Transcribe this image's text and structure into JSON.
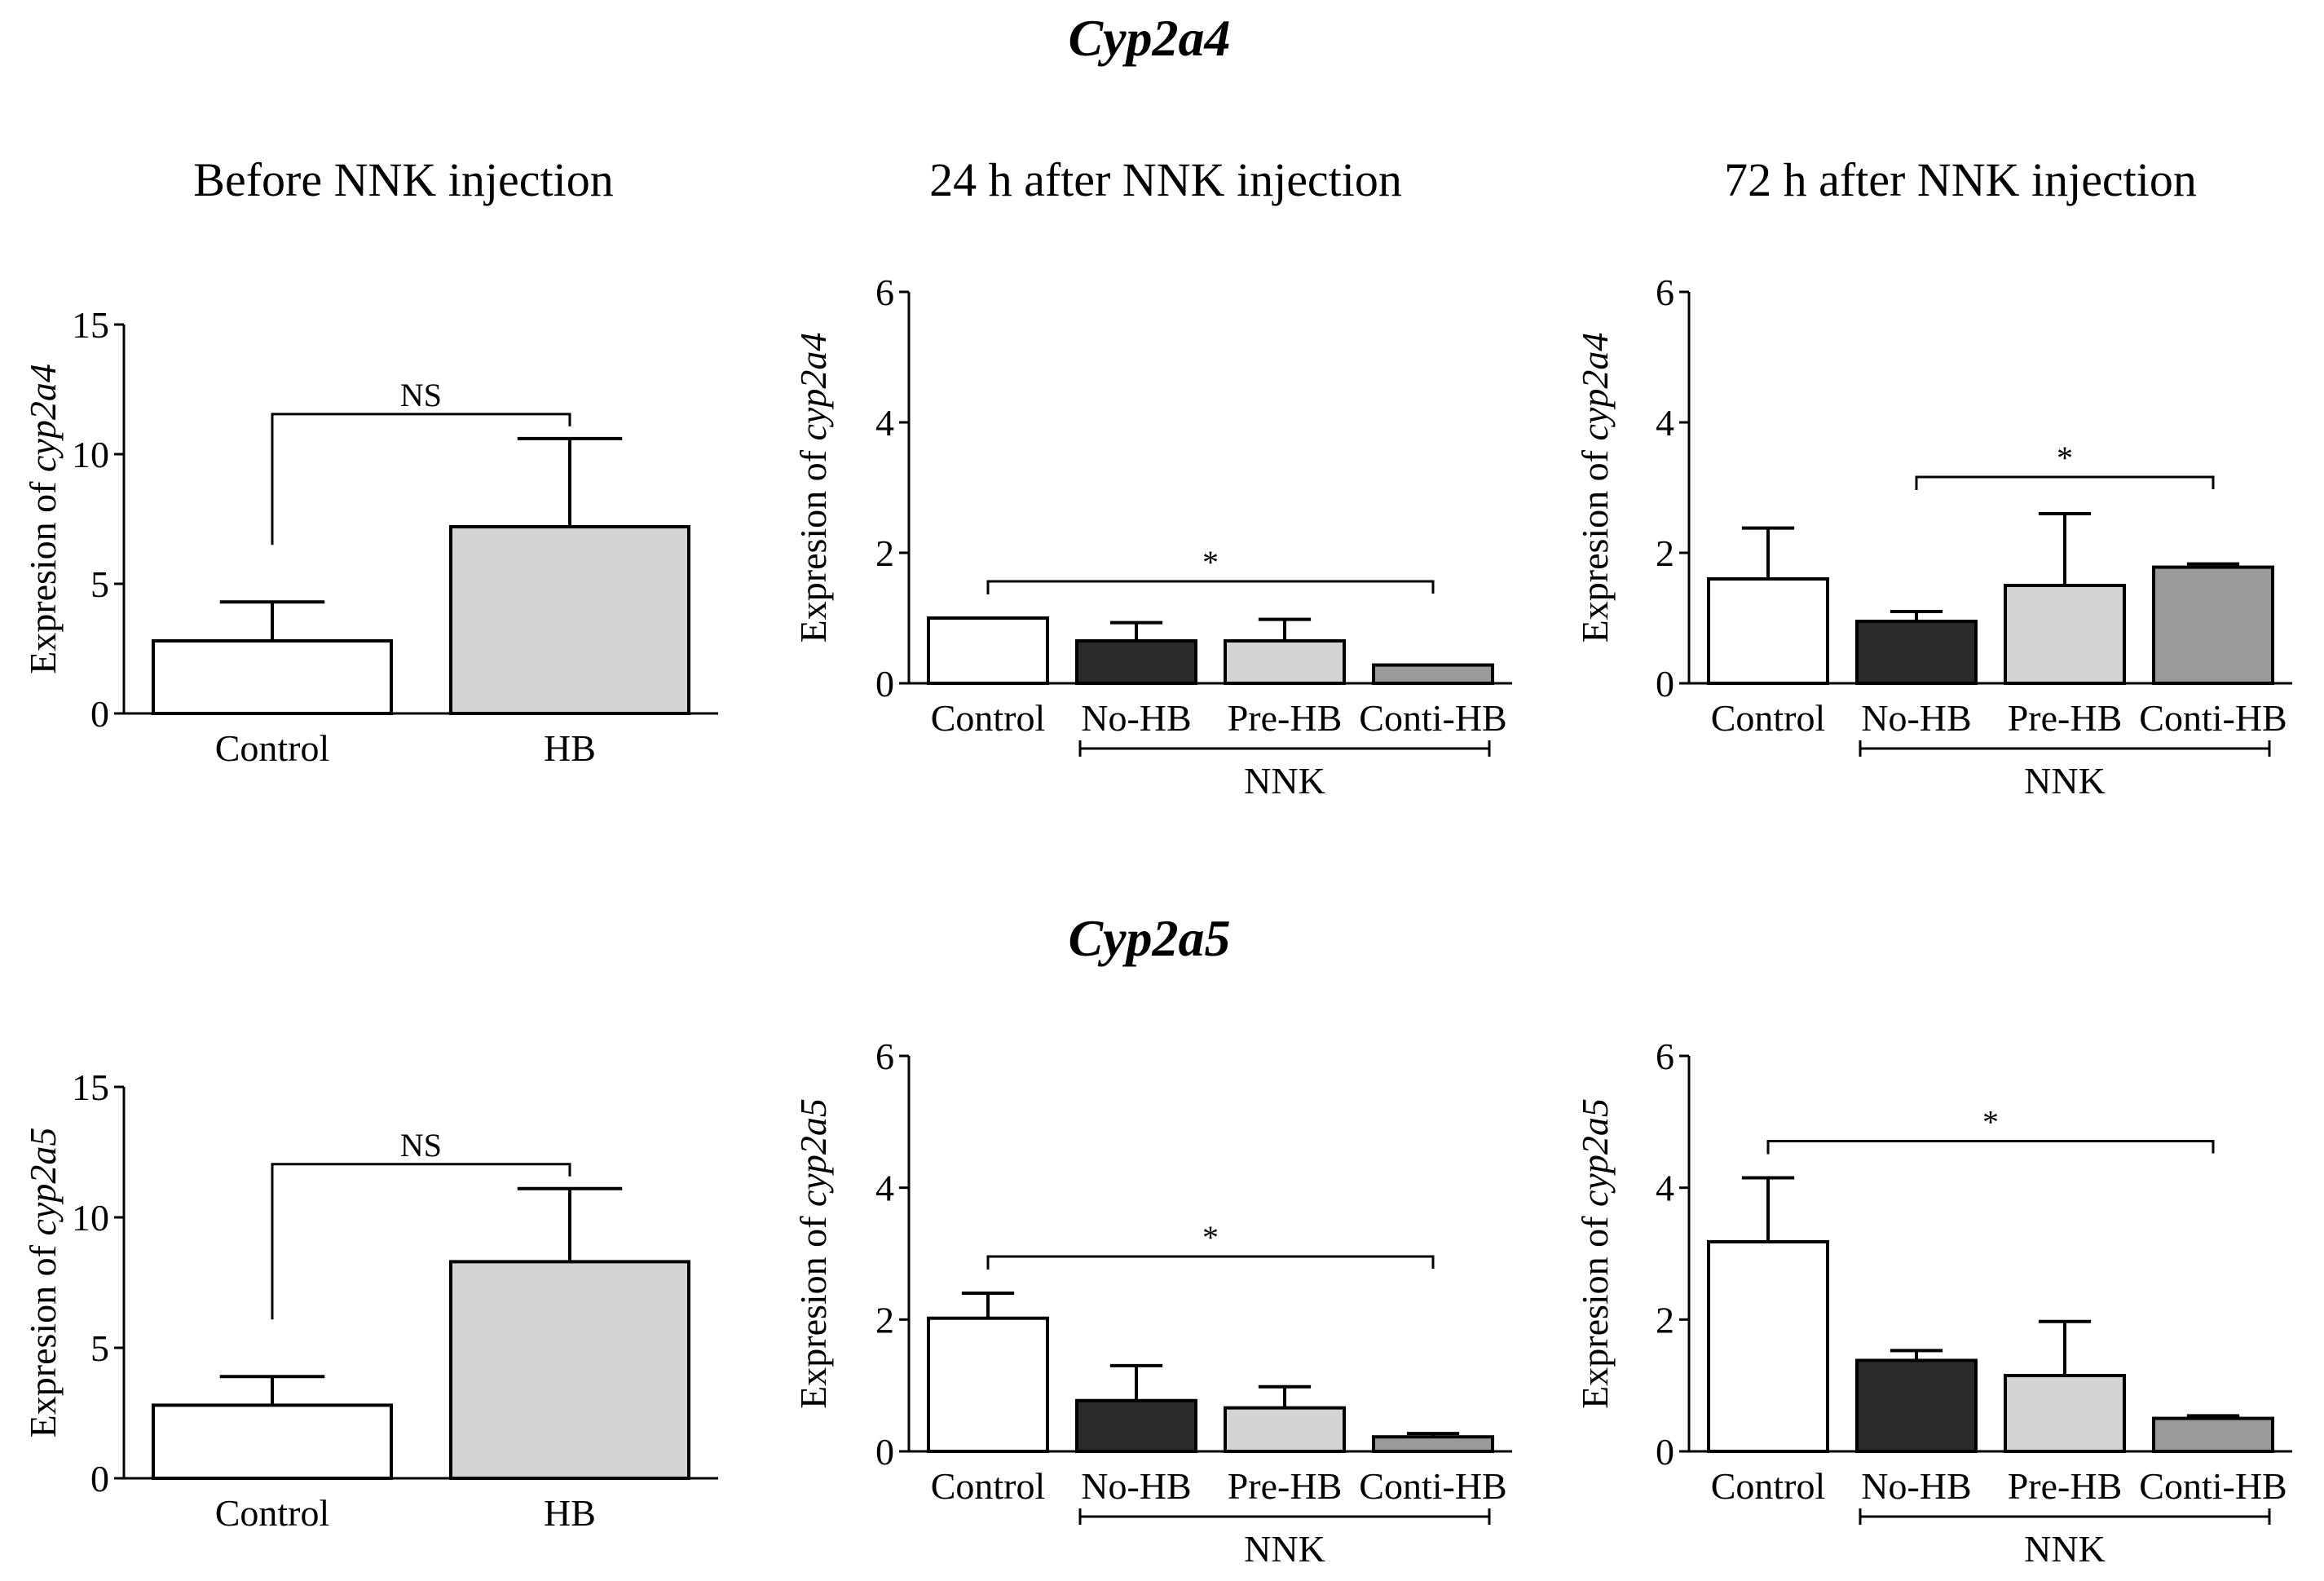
{
  "section_titles": [
    "Cyp2a4",
    "Cyp2a5"
  ],
  "panel_titles": [
    "Before NNK injection",
    "24 h after NNK injection",
    "72 h after NNK injection"
  ],
  "colors": {
    "Control": "#ffffff",
    "HB": "#d4d4d4",
    "No-HB": "#2b2b2b",
    "Pre-HB": "#d4d4d4",
    "Conti-HB": "#9a9a9a"
  },
  "chart_data": [
    {
      "type": "bar",
      "section": "Cyp2a4",
      "title": "Before NNK injection",
      "ylabel_prefix": "Expresion of ",
      "ylabel_gene": "cyp2a4",
      "ylim": [
        0,
        15
      ],
      "yticks": [
        "0",
        "5",
        "10",
        "15"
      ],
      "categories": [
        "Control",
        "HB"
      ],
      "values": [
        2.8,
        7.2
      ],
      "errors": [
        1.5,
        3.4
      ],
      "significance": [
        {
          "from": 0,
          "to": 1,
          "label": "NS"
        }
      ]
    },
    {
      "type": "bar",
      "section": "Cyp2a4",
      "title": "24 h after NNK injection",
      "ylabel_prefix": "Expresion of ",
      "ylabel_gene": "cyp2a4",
      "ylim": [
        0,
        6
      ],
      "yticks": [
        "0",
        "2",
        "4",
        "6"
      ],
      "categories": [
        "Control",
        "No-HB",
        "Pre-HB",
        "Conti-HB"
      ],
      "values": [
        1.0,
        0.65,
        0.65,
        0.28
      ],
      "errors": [
        0,
        0.28,
        0.33,
        0
      ],
      "significance": [
        {
          "from": 0,
          "to": 3,
          "label": "*"
        }
      ],
      "group": {
        "label": "NNK",
        "from": 1,
        "to": 3
      }
    },
    {
      "type": "bar",
      "section": "Cyp2a4",
      "title": "72 h after NNK injection",
      "ylabel_prefix": "Expresion of ",
      "ylabel_gene": "cyp2a4",
      "ylim": [
        0,
        6
      ],
      "yticks": [
        "0",
        "2",
        "4",
        "6"
      ],
      "categories": [
        "Control",
        "No-HB",
        "Pre-HB",
        "Conti-HB"
      ],
      "values": [
        1.6,
        0.95,
        1.5,
        1.78
      ],
      "errors": [
        0.78,
        0.15,
        1.1,
        0.05
      ],
      "significance": [
        {
          "from": 1,
          "to": 3,
          "label": "*"
        }
      ],
      "group": {
        "label": "NNK",
        "from": 1,
        "to": 3
      }
    },
    {
      "type": "bar",
      "section": "Cyp2a5",
      "title": "",
      "ylabel_prefix": "Expresion of ",
      "ylabel_gene": "cyp2a5",
      "ylim": [
        0,
        15
      ],
      "yticks": [
        "0",
        "5",
        "10",
        "15"
      ],
      "categories": [
        "Control",
        "HB"
      ],
      "values": [
        2.8,
        8.3
      ],
      "errors": [
        1.1,
        2.8
      ],
      "significance": [
        {
          "from": 0,
          "to": 1,
          "label": "NS"
        }
      ]
    },
    {
      "type": "bar",
      "section": "Cyp2a5",
      "title": "",
      "ylabel_prefix": "Expresion of ",
      "ylabel_gene": "cyp2a5",
      "ylim": [
        0,
        6
      ],
      "yticks": [
        "0",
        "2",
        "4",
        "6"
      ],
      "categories": [
        "Control",
        "No-HB",
        "Pre-HB",
        "Conti-HB"
      ],
      "values": [
        2.02,
        0.77,
        0.66,
        0.22
      ],
      "errors": [
        0.38,
        0.53,
        0.32,
        0.05
      ],
      "significance": [
        {
          "from": 0,
          "to": 3,
          "label": "*"
        }
      ],
      "group": {
        "label": "NNK",
        "from": 1,
        "to": 3
      }
    },
    {
      "type": "bar",
      "section": "Cyp2a5",
      "title": "",
      "ylabel_prefix": "Expresion of ",
      "ylabel_gene": "cyp2a5",
      "ylim": [
        0,
        6
      ],
      "yticks": [
        "0",
        "2",
        "4",
        "6"
      ],
      "categories": [
        "Control",
        "No-HB",
        "Pre-HB",
        "Conti-HB"
      ],
      "values": [
        3.18,
        1.38,
        1.15,
        0.5
      ],
      "errors": [
        0.97,
        0.15,
        0.82,
        0.04
      ],
      "significance": [
        {
          "from": 0,
          "to": 3,
          "label": "*"
        }
      ],
      "group": {
        "label": "NNK",
        "from": 1,
        "to": 3
      }
    }
  ]
}
